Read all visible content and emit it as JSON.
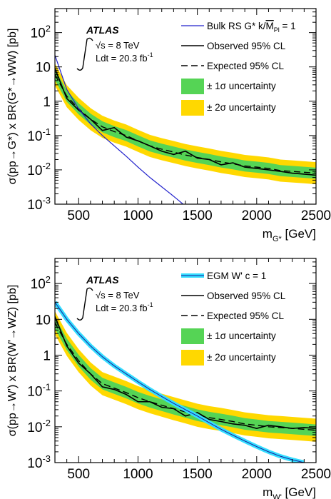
{
  "chart_data": [
    {
      "type": "line",
      "atlas_label": "ATLAS",
      "energy_label": "√s = 8 TeV",
      "lumi_label": "Ldt = 20.3 fb",
      "lumi_sup": "-1",
      "ylabel": "σ(pp→G*) x BR(G*→WW) [pb]",
      "xlabel_main": "m",
      "xlabel_sub": "G*",
      "xlabel_unit": " [GeV]",
      "xlim": [
        300,
        2500
      ],
      "ylim_log10": [
        -3,
        2.7
      ],
      "y_scale": "log",
      "xticks": [
        500,
        1000,
        1500,
        2000,
        2500
      ],
      "yticks": [
        {
          "label": "10",
          "sup": "-3",
          "value": 0.001
        },
        {
          "label": "10",
          "sup": "-2",
          "value": 0.01
        },
        {
          "label": "10",
          "sup": "-1",
          "value": 0.1
        },
        {
          "label": "1",
          "sup": "",
          "value": 1
        },
        {
          "label": "10",
          "sup": "",
          "value": 10
        },
        {
          "label": "10",
          "sup": "2",
          "value": 100
        }
      ],
      "legend": {
        "model_pre": "Bulk RS G* k/",
        "model_mid": "M",
        "model_sub": "Pl",
        "model_post": " = 1",
        "observed": "Observed 95% CL",
        "expected": "Expected 95% CL",
        "sigma1": "± 1σ uncertainty",
        "sigma2": "± 2σ uncertainty"
      },
      "model_style": "thin",
      "colors": {
        "model": "#2222cc",
        "green": "#55d455",
        "yellow": "#ffd800"
      },
      "x": [
        300,
        400,
        500,
        600,
        700,
        800,
        900,
        1000,
        1100,
        1200,
        1300,
        1400,
        1500,
        1600,
        1700,
        1800,
        1900,
        2000,
        2100,
        2200,
        2300,
        2400,
        2500
      ],
      "observed": [
        9,
        1.2,
        0.55,
        0.3,
        0.14,
        0.17,
        0.09,
        0.07,
        0.05,
        0.035,
        0.028,
        0.035,
        0.022,
        0.02,
        0.014,
        0.016,
        0.012,
        0.011,
        0.01,
        0.009,
        0.008,
        0.0075,
        0.007
      ],
      "expected": [
        6,
        1.4,
        0.6,
        0.3,
        0.18,
        0.13,
        0.1,
        0.07,
        0.05,
        0.04,
        0.033,
        0.027,
        0.023,
        0.02,
        0.017,
        0.015,
        0.013,
        0.012,
        0.011,
        0.0095,
        0.009,
        0.0085,
        0.008
      ],
      "model_x": [
        300,
        400,
        500,
        600,
        700,
        800,
        900,
        1000,
        1100,
        1200,
        1300,
        1380
      ],
      "model": [
        22,
        2.2,
        0.6,
        0.22,
        0.1,
        0.05,
        0.025,
        0.012,
        0.006,
        0.0032,
        0.0017,
        0.001
      ]
    },
    {
      "type": "line",
      "atlas_label": "ATLAS",
      "energy_label": "√s = 8 TeV",
      "lumi_label": "Ldt = 20.3 fb",
      "lumi_sup": "-1",
      "ylabel": "σ(pp→W') x BR(W'→WZ) [pb]",
      "xlabel_main": "m",
      "xlabel_sub": "W'",
      "xlabel_unit": " [GeV]",
      "xlim": [
        300,
        2500
      ],
      "ylim_log10": [
        -3,
        2.7
      ],
      "y_scale": "log",
      "xticks": [
        500,
        1000,
        1500,
        2000,
        2500
      ],
      "yticks": [
        {
          "label": "10",
          "sup": "-3",
          "value": 0.001
        },
        {
          "label": "10",
          "sup": "-2",
          "value": 0.01
        },
        {
          "label": "10",
          "sup": "-1",
          "value": 0.1
        },
        {
          "label": "1",
          "sup": "",
          "value": 1
        },
        {
          "label": "10",
          "sup": "",
          "value": 10
        },
        {
          "label": "10",
          "sup": "2",
          "value": 100
        }
      ],
      "legend": {
        "model_pre": "EGM W' c = 1",
        "model_mid": "",
        "model_sub": "",
        "model_post": "",
        "observed": "Observed 95% CL",
        "expected": "Expected 95% CL",
        "sigma1": "± 1σ uncertainty",
        "sigma2": "± 2σ uncertainty"
      },
      "model_style": "thick",
      "colors": {
        "model": "#1a1a99",
        "model_band": "#33ddff",
        "green": "#55d455",
        "yellow": "#ffd800"
      },
      "x": [
        300,
        400,
        500,
        600,
        700,
        800,
        900,
        1000,
        1100,
        1200,
        1300,
        1400,
        1500,
        1600,
        1700,
        1800,
        1900,
        2000,
        2100,
        2200,
        2300,
        2400,
        2500
      ],
      "observed": [
        12,
        1.8,
        0.6,
        0.3,
        0.13,
        0.11,
        0.08,
        0.05,
        0.05,
        0.035,
        0.032,
        0.02,
        0.025,
        0.016,
        0.014,
        0.012,
        0.011,
        0.009,
        0.011,
        0.01,
        0.009,
        0.0095,
        0.009
      ],
      "expected": [
        8,
        2.0,
        0.7,
        0.3,
        0.16,
        0.12,
        0.09,
        0.065,
        0.05,
        0.04,
        0.032,
        0.026,
        0.021,
        0.018,
        0.016,
        0.014,
        0.012,
        0.011,
        0.01,
        0.0095,
        0.009,
        0.0085,
        0.008
      ],
      "model_x": [
        300,
        400,
        500,
        600,
        700,
        800,
        900,
        1000,
        1100,
        1200,
        1300,
        1400,
        1500,
        1600,
        1700,
        1800,
        1900,
        2000,
        2100,
        2200,
        2300,
        2400
      ],
      "model": [
        30,
        10,
        4,
        1.8,
        0.9,
        0.5,
        0.3,
        0.18,
        0.11,
        0.07,
        0.045,
        0.03,
        0.02,
        0.013,
        0.0085,
        0.0058,
        0.004,
        0.0028,
        0.002,
        0.0015,
        0.0012,
        0.001
      ]
    }
  ]
}
